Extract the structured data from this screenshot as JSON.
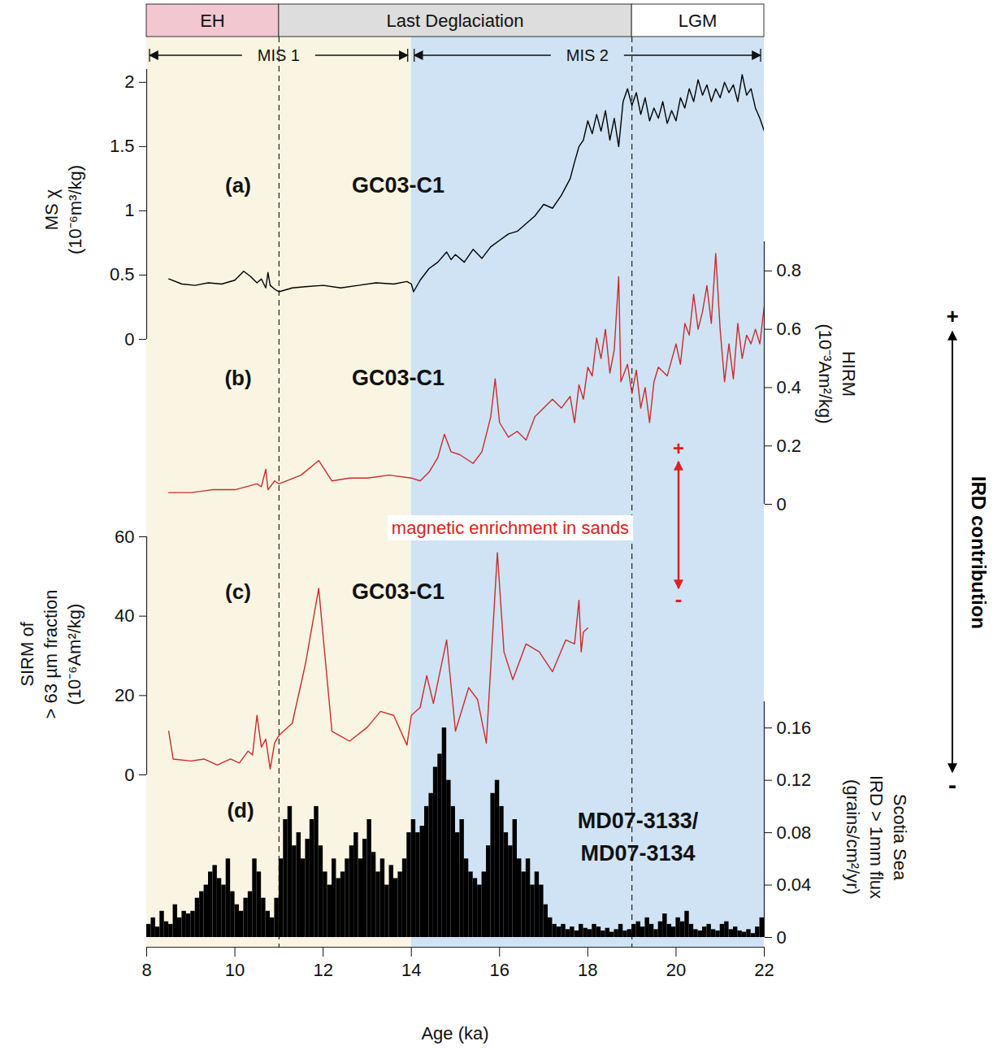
{
  "chart_data": {
    "type": "line",
    "xlabel": "Age (ka)",
    "xlim": [
      8,
      22
    ],
    "xticks": [
      8,
      10,
      12,
      14,
      16,
      18,
      20,
      22
    ],
    "periods": [
      {
        "label": "EH",
        "from": 8,
        "to": 11,
        "color": "#f2c7d0"
      },
      {
        "label": "Last Deglaciation",
        "from": 11,
        "to": 19,
        "color": "#dddddd"
      },
      {
        "label": "LGM",
        "from": 19,
        "to": 22,
        "color": "#ffffff"
      }
    ],
    "mis": [
      {
        "label": "MIS 1",
        "from": 8,
        "to": 14
      },
      {
        "label": "MIS 2",
        "from": 14,
        "to": 22
      }
    ],
    "shading": [
      {
        "from": 8,
        "to": 14,
        "color": "#faf5e2"
      },
      {
        "from": 14,
        "to": 22,
        "color": "#cfe3f4"
      }
    ],
    "boundaries": [
      11,
      19
    ],
    "panels": [
      {
        "type": "line",
        "label": "(a)",
        "site": [
          "GC03-C1"
        ],
        "ylabel": [
          "MS χ",
          "(10⁻⁶m³/kg)"
        ],
        "ylim": [
          0,
          2.1
        ],
        "yticks": [
          0,
          0.5,
          1,
          1.5,
          2
        ],
        "color": "#000000",
        "x": [
          8.5,
          8.8,
          9.1,
          9.4,
          9.7,
          10,
          10.2,
          10.35,
          10.5,
          10.6,
          10.7,
          10.75,
          10.8,
          10.9,
          11,
          11.3,
          11.6,
          12,
          12.4,
          12.8,
          13.2,
          13.6,
          13.9,
          14,
          14.05,
          14.2,
          14.4,
          14.6,
          14.8,
          14.9,
          15,
          15.2,
          15.4,
          15.6,
          15.8,
          16,
          16.2,
          16.4,
          16.6,
          16.8,
          17,
          17.2,
          17.4,
          17.6,
          17.7,
          17.8,
          17.9,
          18,
          18.1,
          18.2,
          18.3,
          18.4,
          18.5,
          18.6,
          18.7,
          18.8,
          18.9,
          19,
          19.1,
          19.2,
          19.3,
          19.4,
          19.5,
          19.6,
          19.7,
          19.8,
          19.9,
          20,
          20.1,
          20.2,
          20.3,
          20.4,
          20.5,
          20.6,
          20.7,
          20.8,
          20.9,
          21,
          21.1,
          21.2,
          21.3,
          21.4,
          21.5,
          21.6,
          21.7,
          21.8,
          21.9,
          22
        ],
        "values": [
          0.47,
          0.43,
          0.42,
          0.44,
          0.43,
          0.46,
          0.53,
          0.49,
          0.44,
          0.47,
          0.4,
          0.52,
          0.42,
          0.39,
          0.37,
          0.4,
          0.41,
          0.42,
          0.4,
          0.42,
          0.44,
          0.43,
          0.45,
          0.43,
          0.37,
          0.46,
          0.55,
          0.6,
          0.68,
          0.62,
          0.66,
          0.6,
          0.7,
          0.63,
          0.72,
          0.77,
          0.82,
          0.84,
          0.9,
          0.96,
          1.05,
          1.02,
          1.12,
          1.25,
          1.38,
          1.5,
          1.55,
          1.7,
          1.6,
          1.75,
          1.62,
          1.78,
          1.55,
          1.72,
          1.5,
          1.85,
          1.95,
          1.82,
          1.92,
          1.75,
          1.88,
          1.7,
          1.8,
          1.72,
          1.85,
          1.68,
          1.78,
          1.7,
          1.88,
          1.8,
          1.95,
          1.85,
          2.02,
          1.9,
          1.98,
          1.85,
          1.95,
          1.88,
          2.0,
          1.92,
          1.98,
          1.85,
          2.06,
          1.9,
          1.95,
          1.8,
          1.72,
          1.62
        ]
      },
      {
        "type": "line",
        "label": "(b)",
        "site": [
          "GC03-C1"
        ],
        "ylabel": [
          "HIRM",
          "(10⁻³Am²/kg)"
        ],
        "axis": "y2",
        "y2lim": [
          0,
          0.9
        ],
        "y2ticks": [
          0,
          0.2,
          0.4,
          0.6,
          0.8
        ],
        "color": "#cc2b2b",
        "x": [
          8.5,
          9,
          9.5,
          10,
          10.5,
          10.6,
          10.7,
          10.75,
          10.9,
          11,
          11.5,
          11.9,
          12.2,
          12.6,
          13,
          13.5,
          14,
          14.2,
          14.4,
          14.6,
          14.75,
          14.9,
          15.1,
          15.4,
          15.6,
          15.8,
          15.9,
          16,
          16.2,
          16.4,
          16.6,
          16.8,
          17,
          17.2,
          17.4,
          17.6,
          17.7,
          17.8,
          17.9,
          18,
          18.1,
          18.2,
          18.3,
          18.4,
          18.5,
          18.6,
          18.7,
          18.75,
          18.9,
          19,
          19.1,
          19.2,
          19.3,
          19.4,
          19.5,
          19.6,
          19.8,
          20,
          20.1,
          20.2,
          20.3,
          20.4,
          20.5,
          20.6,
          20.7,
          20.8,
          20.9,
          21,
          21.1,
          21.2,
          21.3,
          21.4,
          21.5,
          21.6,
          21.7,
          21.8,
          21.9,
          22
        ],
        "values": [
          0.04,
          0.04,
          0.05,
          0.05,
          0.07,
          0.06,
          0.12,
          0.05,
          0.08,
          0.07,
          0.1,
          0.15,
          0.08,
          0.09,
          0.09,
          0.1,
          0.09,
          0.08,
          0.11,
          0.16,
          0.24,
          0.18,
          0.17,
          0.14,
          0.18,
          0.3,
          0.43,
          0.28,
          0.23,
          0.25,
          0.22,
          0.3,
          0.33,
          0.36,
          0.33,
          0.37,
          0.28,
          0.41,
          0.36,
          0.47,
          0.44,
          0.57,
          0.5,
          0.6,
          0.45,
          0.53,
          0.78,
          0.42,
          0.48,
          0.38,
          0.46,
          0.33,
          0.4,
          0.28,
          0.42,
          0.47,
          0.44,
          0.55,
          0.48,
          0.62,
          0.58,
          0.72,
          0.6,
          0.66,
          0.75,
          0.62,
          0.86,
          0.6,
          0.42,
          0.55,
          0.43,
          0.62,
          0.5,
          0.58,
          0.55,
          0.6,
          0.55,
          0.68
        ]
      },
      {
        "type": "line",
        "label": "(c)",
        "site": [
          "GC03-C1"
        ],
        "ylabel": [
          "SIRM of",
          "> 63 µm fraction",
          "(10⁻⁶Am²/kg)"
        ],
        "ylim": [
          0,
          60
        ],
        "yticks": [
          0,
          20,
          40,
          60
        ],
        "color": "#cc2b2b",
        "x": [
          8.5,
          8.6,
          9,
          9.3,
          9.6,
          9.9,
          10.1,
          10.3,
          10.4,
          10.5,
          10.6,
          10.7,
          10.8,
          10.9,
          11,
          11.3,
          11.6,
          11.9,
          12.2,
          12.6,
          13,
          13.3,
          13.6,
          13.9,
          14,
          14.2,
          14.35,
          14.5,
          14.8,
          15,
          15.3,
          15.5,
          15.7,
          15.95,
          16.1,
          16.3,
          16.6,
          16.9,
          17.2,
          17.5,
          17.7,
          17.8,
          17.85,
          17.9,
          18
        ],
        "values": [
          11,
          4,
          3.5,
          4,
          2.5,
          4,
          3,
          6,
          5,
          15,
          7,
          9,
          1.5,
          8,
          10,
          13,
          28,
          47,
          11,
          8.5,
          12,
          16,
          15,
          7.5,
          15,
          17,
          25,
          18,
          34,
          11,
          22,
          19,
          8,
          56,
          31,
          24,
          33,
          31,
          26,
          34,
          33,
          44,
          31,
          36,
          37
        ]
      },
      {
        "type": "bar",
        "label": "(d)",
        "site": [
          "MD07-3133/",
          "MD07-3134"
        ],
        "ylabel": [
          "Scotia Sea",
          "IRD > 1mm flux",
          "(grains/cm²/yr)"
        ],
        "axis": "y2",
        "y2lim": [
          0,
          0.18
        ],
        "y2ticks": [
          0,
          0.04,
          0.08,
          0.12,
          0.16
        ],
        "color": "#000000",
        "bins": [
          8,
          8.1,
          8.2,
          8.3,
          8.4,
          8.5,
          8.6,
          8.7,
          8.8,
          8.9,
          9,
          9.1,
          9.2,
          9.3,
          9.4,
          9.5,
          9.6,
          9.7,
          9.8,
          9.9,
          10,
          10.1,
          10.2,
          10.3,
          10.4,
          10.5,
          10.6,
          10.7,
          10.8,
          10.9,
          11,
          11.1,
          11.2,
          11.3,
          11.4,
          11.5,
          11.6,
          11.7,
          11.8,
          11.9,
          12,
          12.1,
          12.2,
          12.3,
          12.4,
          12.5,
          12.6,
          12.7,
          12.8,
          12.9,
          13,
          13.1,
          13.2,
          13.3,
          13.4,
          13.5,
          13.6,
          13.7,
          13.8,
          13.9,
          14,
          14.1,
          14.2,
          14.3,
          14.4,
          14.5,
          14.6,
          14.7,
          14.8,
          14.9,
          15,
          15.1,
          15.2,
          15.3,
          15.4,
          15.5,
          15.6,
          15.7,
          15.8,
          15.9,
          16,
          16.1,
          16.2,
          16.3,
          16.4,
          16.5,
          16.6,
          16.7,
          16.8,
          16.9,
          17,
          17.1,
          17.2,
          17.3,
          17.4,
          17.5,
          17.6,
          17.7,
          17.8,
          17.9,
          18,
          18.1,
          18.2,
          18.3,
          18.4,
          18.5,
          18.6,
          18.7,
          18.8,
          18.9,
          19,
          19.1,
          19.2,
          19.3,
          19.4,
          19.5,
          19.6,
          19.7,
          19.8,
          19.9,
          20,
          20.1,
          20.2,
          20.3,
          20.4,
          20.5,
          20.6,
          20.7,
          20.8,
          20.9,
          21,
          21.1,
          21.2,
          21.3,
          21.4,
          21.5,
          21.6,
          21.7,
          21.8,
          21.9,
          22
        ],
        "values": [
          0.01,
          0.015,
          0.008,
          0.02,
          0.012,
          0.01,
          0.025,
          0.015,
          0.02,
          0.018,
          0.02,
          0.03,
          0.035,
          0.04,
          0.05,
          0.055,
          0.045,
          0.04,
          0.06,
          0.035,
          0.025,
          0.02,
          0.03,
          0.035,
          0.06,
          0.05,
          0.03,
          0.02,
          0.015,
          0.03,
          0.06,
          0.09,
          0.1,
          0.07,
          0.08,
          0.06,
          0.075,
          0.09,
          0.1,
          0.07,
          0.05,
          0.04,
          0.06,
          0.045,
          0.05,
          0.06,
          0.07,
          0.08,
          0.06,
          0.075,
          0.09,
          0.065,
          0.05,
          0.06,
          0.04,
          0.055,
          0.045,
          0.05,
          0.06,
          0.08,
          0.09,
          0.08,
          0.085,
          0.1,
          0.11,
          0.13,
          0.14,
          0.16,
          0.12,
          0.1,
          0.08,
          0.09,
          0.06,
          0.05,
          0.045,
          0.04,
          0.05,
          0.07,
          0.11,
          0.12,
          0.1,
          0.08,
          0.07,
          0.09,
          0.06,
          0.05,
          0.06,
          0.04,
          0.05,
          0.04,
          0.025,
          0.015,
          0.01,
          0.008,
          0.01,
          0.006,
          0.008,
          0.005,
          0.01,
          0.007,
          0.006,
          0.01,
          0.008,
          0.005,
          0.007,
          0.004,
          0.006,
          0.01,
          0.005,
          0.006,
          0.01,
          0.012,
          0.008,
          0.015,
          0.01,
          0.006,
          0.012,
          0.018,
          0.01,
          0.008,
          0.015,
          0.012,
          0.02,
          0.01,
          0.006,
          0.005,
          0.008,
          0.01,
          0.006,
          0.005,
          0.01,
          0.012,
          0.006,
          0.008,
          0.005,
          0.004,
          0.006,
          0.003,
          0.008,
          0.015
        ]
      }
    ],
    "annotations": [
      {
        "text": "magnetic enrichment in sands",
        "ends": [
          "+",
          "-"
        ],
        "color": "#e02020"
      },
      {
        "text": "IRD contribution",
        "ends": [
          "+",
          "-"
        ],
        "color": "#000000"
      }
    ]
  }
}
